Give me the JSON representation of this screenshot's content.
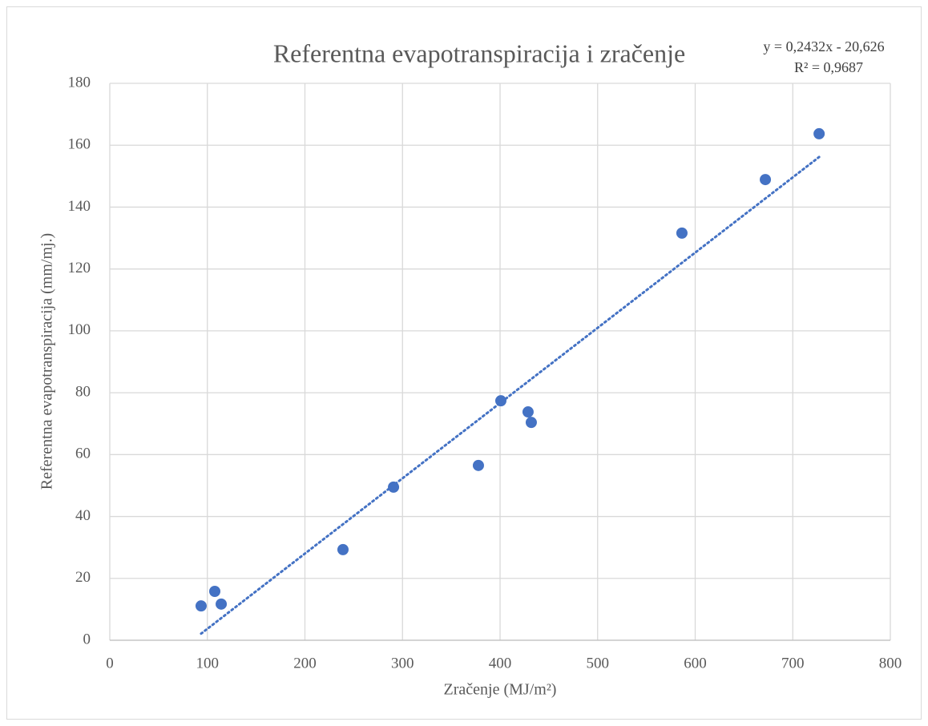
{
  "chart_data": {
    "type": "scatter",
    "title": "Referentna evapotranspiracija i zračenje",
    "x_label": "Zračenje (MJ/m²)",
    "y_label": "Referentna evapotranspiracija (mm/mj.)",
    "x": [
      93.6,
      107.6,
      114.2,
      239,
      290.8,
      377.8,
      400.8,
      428.7,
      432,
      586.4,
      671.9,
      727
    ],
    "series": [
      {
        "name": "Referentna evapotranspiracija",
        "color": "#4472c4",
        "values": [
          11.1,
          15.8,
          11.7,
          29.3,
          49.5,
          56.5,
          77.4,
          73.8,
          70.4,
          131.6,
          148.9,
          163.7
        ]
      }
    ],
    "trendline": {
      "label": "y = 0,2432x - 20,626",
      "r2_label": "R² = 0,9687",
      "slope": 0.2432,
      "intercept": -20.626,
      "color": "#4472c4"
    },
    "xlim": [
      0,
      800
    ],
    "xticks": [
      0,
      100,
      200,
      300,
      400,
      500,
      600,
      700,
      800
    ],
    "ylim": [
      0,
      180
    ],
    "yticks": [
      0,
      20,
      40,
      60,
      80,
      100,
      120,
      140,
      160,
      180
    ],
    "grid": true
  }
}
